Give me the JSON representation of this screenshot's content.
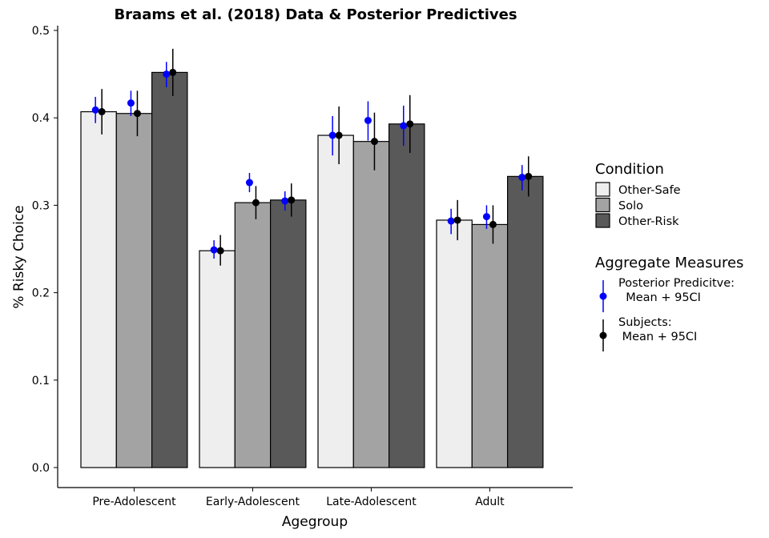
{
  "chart_data": {
    "type": "bar",
    "title": "Braams et al. (2018) Data & Posterior Predictives",
    "xlabel": "Agegroup",
    "ylabel": "% Risky Choice",
    "ylim": [
      0,
      0.5
    ],
    "yticks": [
      "0.0",
      "0.1",
      "0.2",
      "0.3",
      "0.4",
      "0.5"
    ],
    "categories": [
      "Pre-Adolescent",
      "Early-Adolescent",
      "Late-Adolescent",
      "Adult"
    ],
    "series": [
      {
        "name": "Other-Safe",
        "color": "#eeeeee",
        "values": [
          0.407,
          0.248,
          0.38,
          0.283
        ],
        "posterior": {
          "mean": [
            0.409,
            0.249,
            0.38,
            0.282
          ],
          "low": [
            0.394,
            0.239,
            0.357,
            0.267
          ],
          "high": [
            0.424,
            0.26,
            0.402,
            0.296
          ]
        },
        "subjects": {
          "mean": [
            0.407,
            0.248,
            0.38,
            0.283
          ],
          "low": [
            0.381,
            0.231,
            0.347,
            0.26
          ],
          "high": [
            0.433,
            0.266,
            0.413,
            0.306
          ]
        }
      },
      {
        "name": "Solo",
        "color": "#a3a3a3",
        "values": [
          0.405,
          0.303,
          0.373,
          0.278
        ],
        "posterior": {
          "mean": [
            0.417,
            0.326,
            0.397,
            0.287
          ],
          "low": [
            0.402,
            0.315,
            0.374,
            0.273
          ],
          "high": [
            0.431,
            0.337,
            0.419,
            0.3
          ]
        },
        "subjects": {
          "mean": [
            0.405,
            0.303,
            0.373,
            0.278
          ],
          "low": [
            0.379,
            0.284,
            0.34,
            0.256
          ],
          "high": [
            0.431,
            0.322,
            0.406,
            0.3
          ]
        }
      },
      {
        "name": "Other-Risk",
        "color": "#595959",
        "values": [
          0.452,
          0.306,
          0.393,
          0.333
        ],
        "posterior": {
          "mean": [
            0.45,
            0.305,
            0.391,
            0.332
          ],
          "low": [
            0.435,
            0.294,
            0.368,
            0.317
          ],
          "high": [
            0.464,
            0.316,
            0.414,
            0.346
          ]
        },
        "subjects": {
          "mean": [
            0.452,
            0.306,
            0.393,
            0.333
          ],
          "low": [
            0.425,
            0.287,
            0.36,
            0.31
          ],
          "high": [
            0.479,
            0.325,
            0.426,
            0.356
          ]
        }
      }
    ],
    "legend": {
      "placement": "right",
      "condition_title": "Condition",
      "aggregate_title": "Aggregate Measures",
      "posterior_label_1": "Posterior Predicitve:",
      "posterior_label_2": "  Mean + 95CI",
      "subjects_label_1": "Subjects:",
      "subjects_label_2": " Mean + 95CI",
      "posterior_color": "#0000ff",
      "subjects_color": "#000000"
    },
    "grid": false
  }
}
